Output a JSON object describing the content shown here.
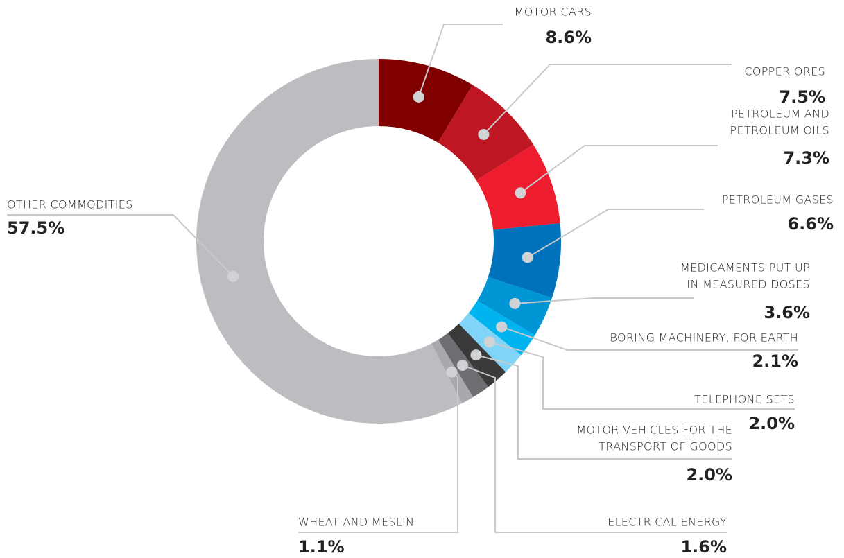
{
  "chart_data": {
    "type": "donut",
    "categories": [
      [
        "MOTOR CARS"
      ],
      [
        "COPPER ORES"
      ],
      [
        "PETROLEUM AND",
        "PETROLEUM OILS"
      ],
      [
        "PETROLEUM GASES"
      ],
      [
        "MEDICAMENTS PUT UP",
        "IN MEASURED DOSES"
      ],
      [
        "BORING MACHINERY, FOR EARTH"
      ],
      [
        "TELEPHONE SETS"
      ],
      [
        "MOTOR VEHICLES FOR THE",
        "TRANSPORT OF GOODS"
      ],
      [
        "ELECTRICAL ENERGY"
      ],
      [
        "WHEAT AND MESLIN"
      ],
      [
        "OTHER COMMODITIES"
      ]
    ],
    "values": [
      8.6,
      7.5,
      7.3,
      6.6,
      3.6,
      2.1,
      2.0,
      2.0,
      1.6,
      1.1,
      57.5
    ],
    "value_labels": [
      "8.6%",
      "7.5%",
      "7.3%",
      "6.6%",
      "3.6%",
      "2.1%",
      "2.0%",
      "2.0%",
      "1.6%",
      "1.1%",
      "57.5%"
    ],
    "colors": [
      "#800000",
      "#be1622",
      "#ed1c2e",
      "#0072bc",
      "#0096d6",
      "#00b4ef",
      "#7fd4f7",
      "#3a3a3a",
      "#6d6e71",
      "#a7a9ac",
      "#bcbdc0"
    ]
  }
}
